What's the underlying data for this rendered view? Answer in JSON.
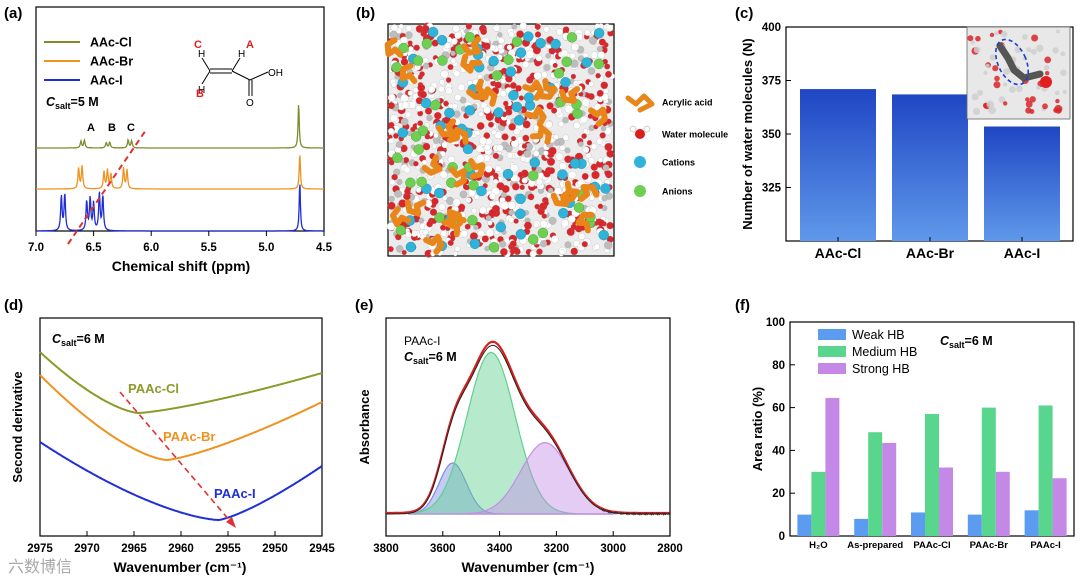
{
  "panels": {
    "a": {
      "label": "(a)",
      "legend": [
        {
          "name": "AAc-Cl",
          "color": "#7f8b2d"
        },
        {
          "name": "AAc-Br",
          "color": "#f0921e"
        },
        {
          "name": "AAc-I",
          "color": "#1f2ed6"
        }
      ],
      "conc_prefix": "C",
      "conc_sub": "salt",
      "conc_value": "=5 M",
      "peak_labels": [
        "A",
        "B",
        "C"
      ],
      "molecule_labels": {
        "c": "C",
        "a": "A",
        "b": "B",
        "h": "H",
        "oh": "OH",
        "o": "O"
      }
    },
    "b": {
      "label": "(b)",
      "legend": [
        {
          "name": "Acrylic acid",
          "color": "#e8861a"
        },
        {
          "name": "Water molecule",
          "color": "#d81e1e"
        },
        {
          "name": "Cations",
          "color": "#2fb3d9"
        },
        {
          "name": "Anions",
          "color": "#6fcf52"
        }
      ]
    },
    "c": {
      "label": "(c)"
    },
    "d": {
      "label": "(d)",
      "conc_prefix": "C",
      "conc_sub": "salt",
      "conc_value": "=6 M",
      "series_labels": [
        "PAAc-Cl",
        "PAAc-Br",
        "PAAc-I"
      ]
    },
    "e": {
      "label": "(e)",
      "sample_label": "PAAc-I",
      "conc_prefix": "C",
      "conc_sub": "salt",
      "conc_value": "=6 M"
    },
    "f": {
      "label": "(f)",
      "conc_prefix": "C",
      "conc_sub": "salt",
      "conc_value": "=6 M"
    }
  },
  "watermark": "六数博信",
  "chart_data": [
    {
      "id": "a",
      "type": "line",
      "xlabel": "Chemical shift (ppm)",
      "ylabel": "",
      "xlim": [
        7.0,
        4.5
      ],
      "xticks": [
        "7.0",
        "6.5",
        "6.0",
        "5.5",
        "5.0",
        "4.5"
      ],
      "series": [
        {
          "name": "AAc-Cl",
          "peaks": [
            [
              6.61,
              0.15
            ],
            [
              6.58,
              0.17
            ],
            [
              6.39,
              0.12
            ],
            [
              6.36,
              0.13
            ],
            [
              6.2,
              0.18
            ],
            [
              6.17,
              0.16
            ],
            [
              4.72,
              1.0
            ]
          ]
        },
        {
          "name": "AAc-Br",
          "peaks": [
            [
              6.63,
              0.55
            ],
            [
              6.6,
              0.6
            ],
            [
              6.41,
              0.45
            ],
            [
              6.38,
              0.5
            ],
            [
              6.35,
              0.4
            ],
            [
              6.24,
              0.55
            ],
            [
              6.21,
              0.5
            ],
            [
              4.71,
              0.95
            ]
          ]
        },
        {
          "name": "AAc-I",
          "peaks": [
            [
              6.78,
              0.7
            ],
            [
              6.75,
              0.75
            ],
            [
              6.56,
              0.6
            ],
            [
              6.53,
              0.65
            ],
            [
              6.5,
              0.55
            ],
            [
              6.45,
              0.75
            ],
            [
              6.42,
              0.7
            ],
            [
              4.71,
              1.0
            ]
          ]
        }
      ]
    },
    {
      "id": "c",
      "type": "bar",
      "categories": [
        "AAc-Cl",
        "AAc-Br",
        "AAc-I"
      ],
      "values": [
        371,
        368.5,
        353.5
      ],
      "ylabel": "Number of water molecules (N)",
      "ylim": [
        300,
        400
      ],
      "yticks": [
        325,
        350,
        375,
        400
      ]
    },
    {
      "id": "d",
      "type": "line",
      "xlabel": "Wavenumber (cm⁻¹)",
      "ylabel": "Second derivative",
      "xlim": [
        2975,
        2945
      ],
      "xticks": [
        2975,
        2970,
        2965,
        2960,
        2955,
        2950,
        2945
      ],
      "series": [
        {
          "name": "PAAc-Cl",
          "minimum_x": 2964.5
        },
        {
          "name": "PAAc-Br",
          "minimum_x": 2961.5
        },
        {
          "name": "PAAc-I",
          "minimum_x": 2956.0
        }
      ]
    },
    {
      "id": "e",
      "type": "area",
      "xlabel": "Wavenumber (cm⁻¹)",
      "ylabel": "Absorbance",
      "xlim": [
        3800,
        2800
      ],
      "xticks": [
        3800,
        3600,
        3400,
        3200,
        3000,
        2800
      ],
      "components": [
        {
          "center": 3565,
          "height": 0.3,
          "width": 48,
          "color": "#7d8be6"
        },
        {
          "center": 3430,
          "height": 0.95,
          "width": 85,
          "color": "#5fd08e"
        },
        {
          "center": 3240,
          "height": 0.42,
          "width": 85,
          "color": "#c48ee6"
        }
      ]
    },
    {
      "id": "f",
      "type": "bar",
      "categories": [
        "H₂O",
        "As-prepared",
        "PAAc-Cl",
        "PAAc-Br",
        "PAAc-I"
      ],
      "ylabel": "Area ratio (%)",
      "ylim": [
        0,
        100
      ],
      "yticks": [
        0,
        20,
        40,
        60,
        80,
        100
      ],
      "legend_position": "top-left",
      "series": [
        {
          "name": "Weak HB",
          "color": "#5b9cf0",
          "values": [
            10,
            8,
            11,
            10,
            12
          ]
        },
        {
          "name": "Medium HB",
          "color": "#58d68d",
          "values": [
            30,
            48.5,
            57,
            60,
            61
          ]
        },
        {
          "name": "Strong HB",
          "color": "#c489e6",
          "values": [
            64.5,
            43.5,
            32,
            30,
            27
          ]
        }
      ]
    }
  ]
}
